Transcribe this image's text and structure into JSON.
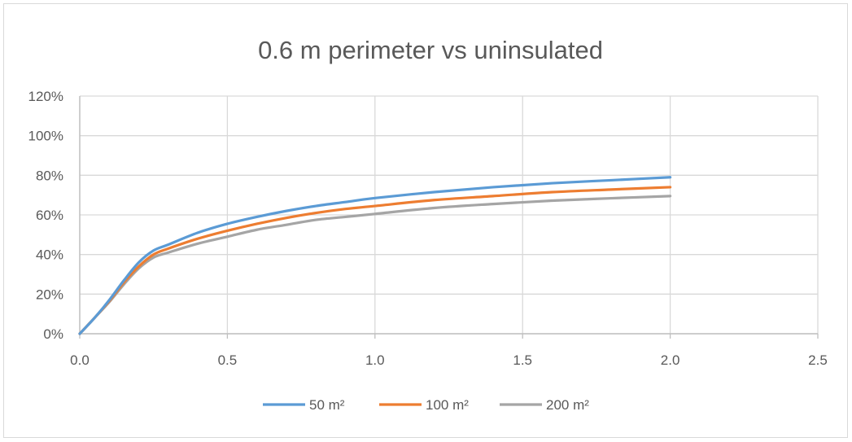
{
  "chart_data": {
    "type": "line",
    "title": "0.6 m perimeter vs uninsulated",
    "xlabel": "",
    "ylabel": "",
    "xlim": [
      0.0,
      2.5
    ],
    "ylim": [
      0,
      1.2
    ],
    "x_ticks": [
      "0.0",
      "0.5",
      "1.0",
      "1.5",
      "2.0",
      "2.5"
    ],
    "y_ticks": [
      "0%",
      "20%",
      "40%",
      "60%",
      "80%",
      "100%",
      "120%"
    ],
    "grid": true,
    "legend_position": "bottom",
    "x": [
      0.0,
      0.05,
      0.1,
      0.15,
      0.2,
      0.25,
      0.3,
      0.4,
      0.5,
      0.6,
      0.7,
      0.8,
      0.9,
      1.0,
      1.2,
      1.4,
      1.6,
      1.8,
      2.0
    ],
    "series": [
      {
        "name": "50 m²",
        "color": "#5b9bd5",
        "values": [
          0.0,
          0.08,
          0.17,
          0.27,
          0.36,
          0.42,
          0.45,
          0.51,
          0.555,
          0.59,
          0.62,
          0.645,
          0.665,
          0.685,
          0.715,
          0.74,
          0.76,
          0.775,
          0.79
        ]
      },
      {
        "name": "100 m²",
        "color": "#ed7d31",
        "values": [
          0.0,
          0.08,
          0.165,
          0.26,
          0.34,
          0.4,
          0.43,
          0.48,
          0.52,
          0.555,
          0.585,
          0.61,
          0.63,
          0.645,
          0.675,
          0.695,
          0.715,
          0.728,
          0.74
        ]
      },
      {
        "name": "200 m²",
        "color": "#a5a5a5",
        "values": [
          0.0,
          0.08,
          0.16,
          0.25,
          0.33,
          0.385,
          0.41,
          0.455,
          0.49,
          0.525,
          0.55,
          0.575,
          0.59,
          0.605,
          0.635,
          0.655,
          0.672,
          0.684,
          0.695
        ]
      }
    ]
  }
}
